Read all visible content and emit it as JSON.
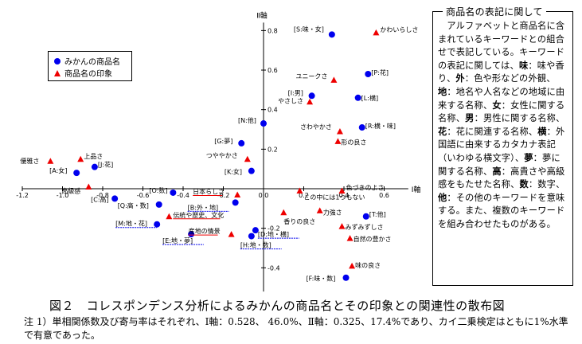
{
  "chart_data": {
    "type": "scatter",
    "x_axis_label": "Ⅰ軸",
    "y_axis_label": "Ⅱ軸",
    "xlim": [
      -1.2,
      0.7
    ],
    "ylim": [
      -0.5,
      0.85
    ],
    "x_ticks": [
      "-1.2",
      "-1.0",
      "-0.8",
      "-0.6",
      "-0.4",
      "-0.2",
      "0.0",
      "0.2",
      "0.4",
      "0.6"
    ],
    "y_ticks": [
      "0.8",
      "0.6",
      "0.4",
      "0.2",
      "0.0",
      "-0.2",
      "-0.4"
    ],
    "series": [
      {
        "name": "みかんの商品名",
        "marker": "circle",
        "color": "#0000ee",
        "points": [
          {
            "label": "[S:味・女]",
            "x": 0.34,
            "y": 0.78
          },
          {
            "label": "[P:花]",
            "x": 0.52,
            "y": 0.58
          },
          {
            "label": "[I:男]",
            "x": 0.24,
            "y": 0.47
          },
          {
            "label": "[L:横]",
            "x": 0.47,
            "y": 0.46
          },
          {
            "label": "[N:他]",
            "x": 0.0,
            "y": 0.33
          },
          {
            "label": "[R:横・味]",
            "x": 0.49,
            "y": 0.31
          },
          {
            "label": "[G:夢]",
            "x": -0.11,
            "y": 0.23
          },
          {
            "label": "[K:女]",
            "x": -0.06,
            "y": 0.09
          },
          {
            "label": "[A:女]",
            "x": -0.93,
            "y": 0.08
          },
          {
            "label": "[J:花]",
            "x": -0.84,
            "y": 0.11
          },
          {
            "label": "[O:数]",
            "x": -0.45,
            "y": -0.02
          },
          {
            "label": "[C:高]",
            "x": -0.74,
            "y": -0.05
          },
          {
            "label": "[B:外・地]",
            "x": -0.14,
            "y": -0.07
          },
          {
            "label": "[Q:高・数]",
            "x": -0.52,
            "y": -0.08
          },
          {
            "label": "[T:他]",
            "x": 0.51,
            "y": -0.14
          },
          {
            "label": "[M:地・花]",
            "x": -0.53,
            "y": -0.18
          },
          {
            "label": "[E:地・夢]",
            "x": -0.36,
            "y": -0.23
          },
          {
            "label": "[D:地・横]",
            "x": -0.04,
            "y": -0.21
          },
          {
            "label": "[H:地・数]",
            "x": -0.06,
            "y": -0.24
          },
          {
            "label": "[F:味・数]",
            "x": 0.41,
            "y": -0.45
          }
        ]
      },
      {
        "name": "商品名の印象",
        "marker": "triangle",
        "color": "#ee0000",
        "points": [
          {
            "label": "かわいらしさ",
            "x": 0.56,
            "y": 0.79
          },
          {
            "label": "ユニークさ",
            "x": 0.35,
            "y": 0.55
          },
          {
            "label": "やさしさ",
            "x": 0.23,
            "y": 0.44
          },
          {
            "label": "さわやかさ",
            "x": 0.38,
            "y": 0.29
          },
          {
            "label": "形の良さ",
            "x": 0.37,
            "y": 0.24
          },
          {
            "label": "上品さ",
            "x": -0.91,
            "y": 0.15
          },
          {
            "label": "優雅さ",
            "x": -1.06,
            "y": 0.14
          },
          {
            "label": "つややかさ",
            "x": -0.08,
            "y": 0.15
          },
          {
            "label": "高級感",
            "x": -0.87,
            "y": 0.01
          },
          {
            "label": "日本らしさ",
            "x": -0.13,
            "y": -0.03
          },
          {
            "label": "色づきのよさ",
            "x": 0.39,
            "y": -0.01
          },
          {
            "label": "この中には1つもない",
            "x": 0.18,
            "y": -0.01
          },
          {
            "label": "伝統や歴史、文化",
            "x": -0.47,
            "y": -0.14
          },
          {
            "label": "力強さ",
            "x": 0.28,
            "y": -0.11
          },
          {
            "label": "香りの良さ",
            "x": 0.1,
            "y": -0.12
          },
          {
            "label": "産地の情景",
            "x": -0.16,
            "y": -0.23
          },
          {
            "label": "みずみずしさ",
            "x": 0.39,
            "y": -0.19
          },
          {
            "label": "自然の豊かさ",
            "x": 0.43,
            "y": -0.25
          },
          {
            "label": "味の良さ",
            "x": 0.44,
            "y": -0.39
          }
        ]
      }
    ]
  },
  "note": {
    "title": "商品名の表記に関して",
    "body_parts": [
      {
        "t": "アルファベットと商品名に含まれているキーワードとの組合せで表記している。キーワードの表記に関しては、",
        "b": false
      },
      {
        "t": "味",
        "b": true
      },
      {
        "t": "：味や香り、",
        "b": false
      },
      {
        "t": "外",
        "b": true
      },
      {
        "t": "：色や形などの外観、",
        "b": false
      },
      {
        "t": "地",
        "b": true
      },
      {
        "t": "：地名や人名などの地域に由来する名称、",
        "b": false
      },
      {
        "t": "女",
        "b": true
      },
      {
        "t": "：女性に関する名称、",
        "b": false
      },
      {
        "t": "男",
        "b": true
      },
      {
        "t": "：男性に関する名称、",
        "b": false
      },
      {
        "t": "花",
        "b": true
      },
      {
        "t": "：花に関連する名称、",
        "b": false
      },
      {
        "t": "横",
        "b": true
      },
      {
        "t": "：外国語に由来するカタカナ表記（いわゆる横文字）、",
        "b": false
      },
      {
        "t": "夢",
        "b": true
      },
      {
        "t": "：夢に関する名称、",
        "b": false
      },
      {
        "t": "高",
        "b": true
      },
      {
        "t": "：高貴さや高級感をもたせた名称、",
        "b": false
      },
      {
        "t": "数",
        "b": true
      },
      {
        "t": "：数字、",
        "b": false
      },
      {
        "t": "他",
        "b": true
      },
      {
        "t": "：その他のキーワードを意味する。また、複数のキーワードを組み合わせたものがある。",
        "b": false
      }
    ]
  },
  "caption": "図２　コレスポンデンス分析によるみかんの商品名とその印象との関連性の散布図",
  "footnote": "注 1）単相関係数及び寄与率はそれぞれ、Ⅰ軸：0.528、 46.0%、Ⅱ軸：0.325、17.4%であり、カイ二乗検定はともに1%水準で有意であった。",
  "legend": {
    "items": [
      {
        "label": "みかんの商品名"
      },
      {
        "label": "商品名の印象"
      }
    ]
  }
}
